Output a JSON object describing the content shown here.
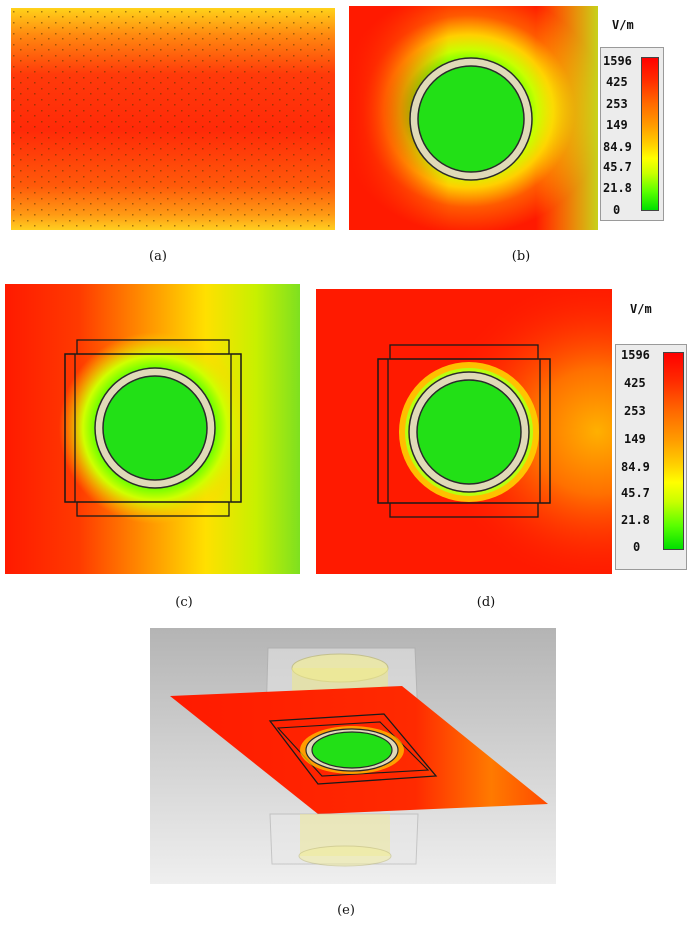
{
  "panels": {
    "a": {
      "caption": "(a)"
    },
    "b": {
      "caption": "(b)"
    },
    "c": {
      "caption": "(c)"
    },
    "d": {
      "caption": "(d)"
    },
    "e": {
      "caption": "(e)"
    }
  },
  "colorbar": {
    "unit": "V/m",
    "ticks": [
      "1596",
      "425",
      "253",
      "149",
      "84.9",
      "45.7",
      "21.8",
      "0"
    ]
  },
  "colors": {
    "field_high": "#ff1a00",
    "field_mid": "#ffd000",
    "field_low": "#10e010",
    "ring": "#d8d2b0",
    "background_3d": "#c8c8c8"
  }
}
